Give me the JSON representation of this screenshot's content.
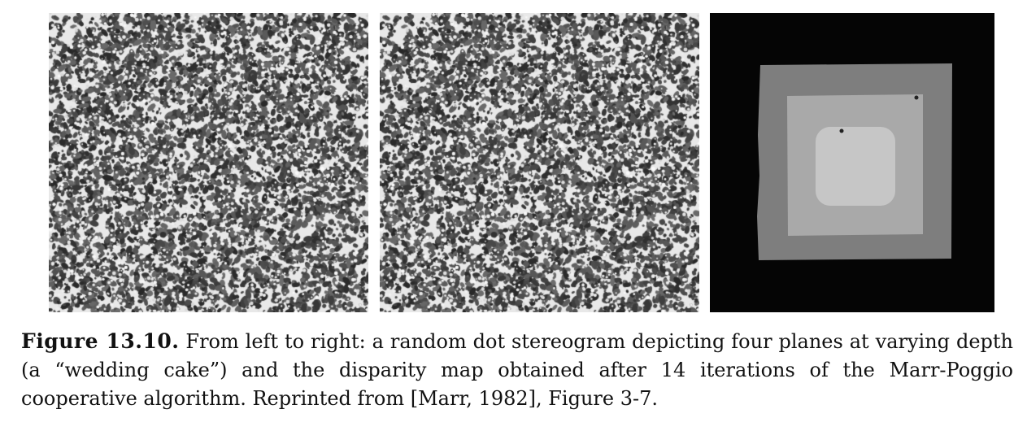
{
  "figure": {
    "panels": [
      {
        "name": "stereogram-left",
        "kind": "random-dot-texture"
      },
      {
        "name": "stereogram-right",
        "kind": "random-dot-texture"
      },
      {
        "name": "disparity-map",
        "kind": "nested-square-planes",
        "plane_count": 4,
        "plane_colors": [
          "#050505",
          "#7e7e7e",
          "#a9a9a9",
          "#c6c6c6"
        ]
      }
    ]
  },
  "caption": {
    "label": "Figure 13.10.",
    "text": " From left to right: a random dot stereogram depicting four planes at varying depth (a “wedding cake”) and the disparity map obtained after 14 iterations of the Marr-Poggio cooperative algorithm. Reprinted from [Marr, 1982], Figure 3-7."
  }
}
